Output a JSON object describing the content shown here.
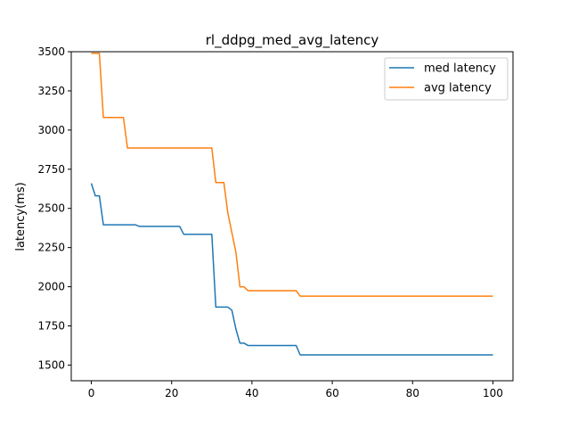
{
  "chart_data": {
    "type": "line",
    "title": "rl_ddpg_med_avg_latency",
    "xlabel": "",
    "ylabel": "latency(ms)",
    "xlim": [
      -5,
      105
    ],
    "ylim": [
      1400,
      3500
    ],
    "xticks": [
      0,
      20,
      40,
      60,
      80,
      100
    ],
    "yticks": [
      1500,
      1750,
      2000,
      2250,
      2500,
      2750,
      3000,
      3250,
      3500
    ],
    "grid": false,
    "legend_position": "upper right",
    "series": [
      {
        "name": "med latency",
        "color": "#1f77b4",
        "points": [
          [
            0,
            2660
          ],
          [
            1,
            2580
          ],
          [
            2,
            2580
          ],
          [
            3,
            2395
          ],
          [
            11,
            2395
          ],
          [
            12,
            2385
          ],
          [
            22,
            2385
          ],
          [
            23,
            2335
          ],
          [
            30,
            2335
          ],
          [
            31,
            1870
          ],
          [
            34,
            1870
          ],
          [
            35,
            1850
          ],
          [
            36,
            1730
          ],
          [
            37,
            1640
          ],
          [
            38,
            1640
          ],
          [
            39,
            1625
          ],
          [
            51,
            1625
          ],
          [
            52,
            1565
          ],
          [
            100,
            1565
          ]
        ]
      },
      {
        "name": "avg latency",
        "color": "#ff7f0e",
        "points": [
          [
            0,
            3490
          ],
          [
            2,
            3490
          ],
          [
            3,
            3080
          ],
          [
            8,
            3080
          ],
          [
            9,
            2885
          ],
          [
            30,
            2885
          ],
          [
            31,
            2665
          ],
          [
            33,
            2665
          ],
          [
            34,
            2470
          ],
          [
            36,
            2220
          ],
          [
            37,
            2000
          ],
          [
            38,
            2000
          ],
          [
            39,
            1975
          ],
          [
            51,
            1975
          ],
          [
            52,
            1940
          ],
          [
            100,
            1940
          ]
        ]
      }
    ]
  }
}
